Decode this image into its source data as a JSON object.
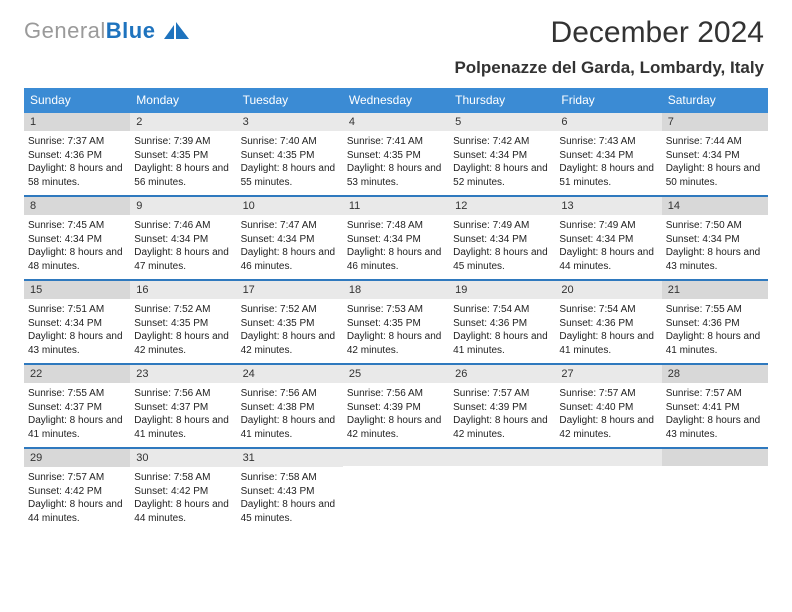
{
  "logo": {
    "grey_text": "General",
    "blue_text": "Blue"
  },
  "title": "December 2024",
  "location": "Polpenazze del Garda, Lombardy, Italy",
  "colors": {
    "header_blue": "#3b8bd4",
    "rule_blue": "#2f79be",
    "day_grey": "#e9e9e9",
    "day_grey_dk": "#d8d8d8",
    "logo_grey": "#9a9a9a",
    "logo_blue": "#1e73be"
  },
  "day_headers": [
    "Sunday",
    "Monday",
    "Tuesday",
    "Wednesday",
    "Thursday",
    "Friday",
    "Saturday"
  ],
  "labels": {
    "sunrise": "Sunrise: ",
    "sunset": "Sunset: ",
    "daylight": "Daylight: "
  },
  "weeks": [
    [
      {
        "n": "1",
        "sr": "7:37 AM",
        "ss": "4:36 PM",
        "dl": "8 hours and 58 minutes."
      },
      {
        "n": "2",
        "sr": "7:39 AM",
        "ss": "4:35 PM",
        "dl": "8 hours and 56 minutes."
      },
      {
        "n": "3",
        "sr": "7:40 AM",
        "ss": "4:35 PM",
        "dl": "8 hours and 55 minutes."
      },
      {
        "n": "4",
        "sr": "7:41 AM",
        "ss": "4:35 PM",
        "dl": "8 hours and 53 minutes."
      },
      {
        "n": "5",
        "sr": "7:42 AM",
        "ss": "4:34 PM",
        "dl": "8 hours and 52 minutes."
      },
      {
        "n": "6",
        "sr": "7:43 AM",
        "ss": "4:34 PM",
        "dl": "8 hours and 51 minutes."
      },
      {
        "n": "7",
        "sr": "7:44 AM",
        "ss": "4:34 PM",
        "dl": "8 hours and 50 minutes."
      }
    ],
    [
      {
        "n": "8",
        "sr": "7:45 AM",
        "ss": "4:34 PM",
        "dl": "8 hours and 48 minutes."
      },
      {
        "n": "9",
        "sr": "7:46 AM",
        "ss": "4:34 PM",
        "dl": "8 hours and 47 minutes."
      },
      {
        "n": "10",
        "sr": "7:47 AM",
        "ss": "4:34 PM",
        "dl": "8 hours and 46 minutes."
      },
      {
        "n": "11",
        "sr": "7:48 AM",
        "ss": "4:34 PM",
        "dl": "8 hours and 46 minutes."
      },
      {
        "n": "12",
        "sr": "7:49 AM",
        "ss": "4:34 PM",
        "dl": "8 hours and 45 minutes."
      },
      {
        "n": "13",
        "sr": "7:49 AM",
        "ss": "4:34 PM",
        "dl": "8 hours and 44 minutes."
      },
      {
        "n": "14",
        "sr": "7:50 AM",
        "ss": "4:34 PM",
        "dl": "8 hours and 43 minutes."
      }
    ],
    [
      {
        "n": "15",
        "sr": "7:51 AM",
        "ss": "4:34 PM",
        "dl": "8 hours and 43 minutes."
      },
      {
        "n": "16",
        "sr": "7:52 AM",
        "ss": "4:35 PM",
        "dl": "8 hours and 42 minutes."
      },
      {
        "n": "17",
        "sr": "7:52 AM",
        "ss": "4:35 PM",
        "dl": "8 hours and 42 minutes."
      },
      {
        "n": "18",
        "sr": "7:53 AM",
        "ss": "4:35 PM",
        "dl": "8 hours and 42 minutes."
      },
      {
        "n": "19",
        "sr": "7:54 AM",
        "ss": "4:36 PM",
        "dl": "8 hours and 41 minutes."
      },
      {
        "n": "20",
        "sr": "7:54 AM",
        "ss": "4:36 PM",
        "dl": "8 hours and 41 minutes."
      },
      {
        "n": "21",
        "sr": "7:55 AM",
        "ss": "4:36 PM",
        "dl": "8 hours and 41 minutes."
      }
    ],
    [
      {
        "n": "22",
        "sr": "7:55 AM",
        "ss": "4:37 PM",
        "dl": "8 hours and 41 minutes."
      },
      {
        "n": "23",
        "sr": "7:56 AM",
        "ss": "4:37 PM",
        "dl": "8 hours and 41 minutes."
      },
      {
        "n": "24",
        "sr": "7:56 AM",
        "ss": "4:38 PM",
        "dl": "8 hours and 41 minutes."
      },
      {
        "n": "25",
        "sr": "7:56 AM",
        "ss": "4:39 PM",
        "dl": "8 hours and 42 minutes."
      },
      {
        "n": "26",
        "sr": "7:57 AM",
        "ss": "4:39 PM",
        "dl": "8 hours and 42 minutes."
      },
      {
        "n": "27",
        "sr": "7:57 AM",
        "ss": "4:40 PM",
        "dl": "8 hours and 42 minutes."
      },
      {
        "n": "28",
        "sr": "7:57 AM",
        "ss": "4:41 PM",
        "dl": "8 hours and 43 minutes."
      }
    ],
    [
      {
        "n": "29",
        "sr": "7:57 AM",
        "ss": "4:42 PM",
        "dl": "8 hours and 44 minutes."
      },
      {
        "n": "30",
        "sr": "7:58 AM",
        "ss": "4:42 PM",
        "dl": "8 hours and 44 minutes."
      },
      {
        "n": "31",
        "sr": "7:58 AM",
        "ss": "4:43 PM",
        "dl": "8 hours and 45 minutes."
      },
      {
        "empty": true
      },
      {
        "empty": true
      },
      {
        "empty": true
      },
      {
        "empty": true
      }
    ]
  ]
}
